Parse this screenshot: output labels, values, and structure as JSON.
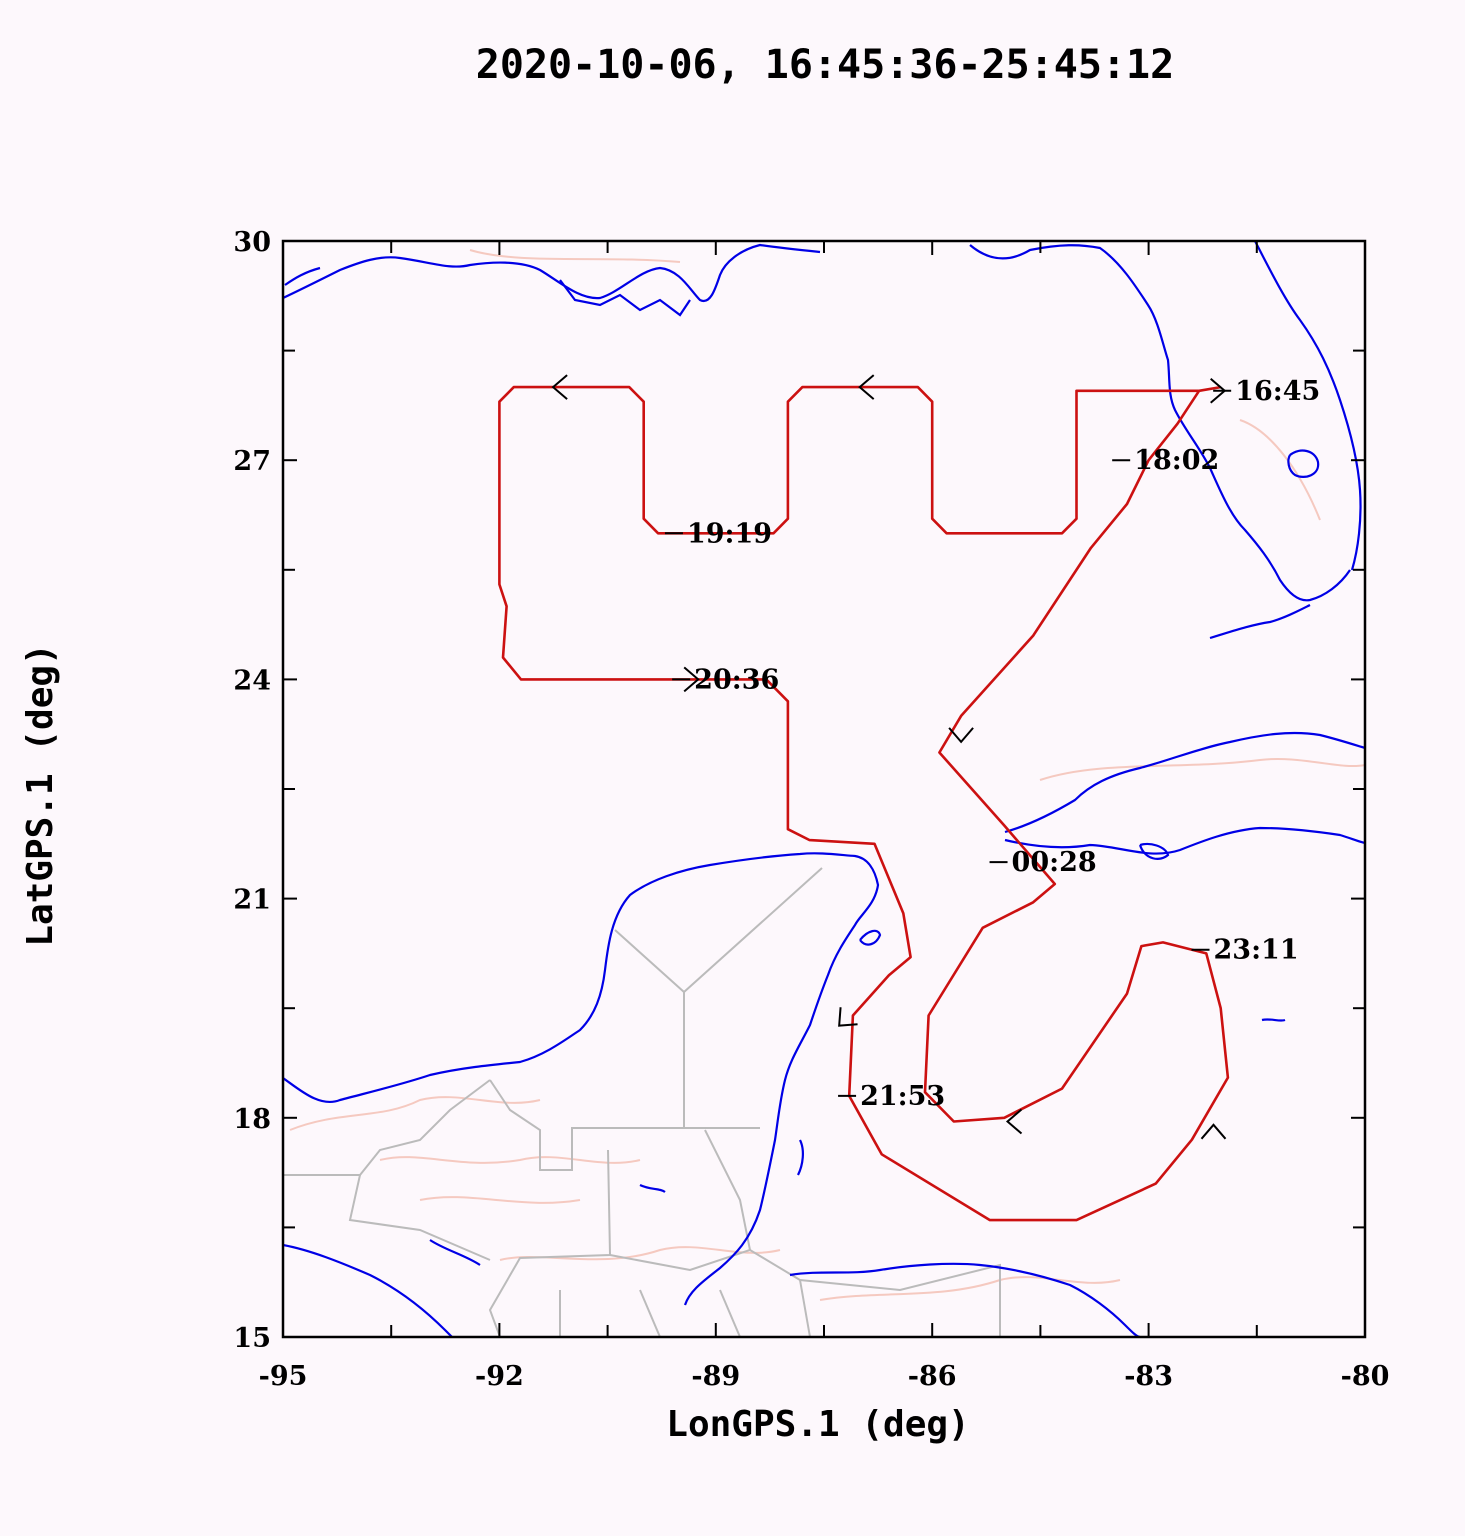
{
  "title": "2020-10-06, 16:45:36-25:45:12",
  "xlabel": "LonGPS.1 (deg)",
  "ylabel": "LatGPS.1 (deg)",
  "colors": {
    "track": "#cc1111",
    "coastline": "#0000e6",
    "borders": "#bbbbbb",
    "rivers": "#f5c9c0",
    "background": "#fdf8fc"
  },
  "chart_data": {
    "type": "map-track",
    "xlim": [
      -95,
      -80
    ],
    "ylim": [
      15,
      30
    ],
    "x_ticks": [
      -95,
      -92,
      -89,
      -86,
      -83,
      -80
    ],
    "y_ticks": [
      15,
      18,
      21,
      24,
      27,
      30
    ],
    "x_tick_labels": [
      "-95",
      "-92",
      "-89",
      "-86",
      "-83",
      "-80"
    ],
    "y_tick_labels": [
      "15",
      "18",
      "21",
      "24",
      "27",
      "30"
    ],
    "flight_track": [
      [
        -82.3,
        27.95
      ],
      [
        -82.9,
        27.95
      ],
      [
        -84.0,
        27.95
      ],
      [
        -84.0,
        26.2
      ],
      [
        -84.2,
        26.0
      ],
      [
        -85.8,
        26.0
      ],
      [
        -86.0,
        26.2
      ],
      [
        -86.0,
        27.8
      ],
      [
        -86.2,
        28.0
      ],
      [
        -87.8,
        28.0
      ],
      [
        -88.0,
        27.8
      ],
      [
        -88.0,
        26.2
      ],
      [
        -88.2,
        26.0
      ],
      [
        -89.8,
        26.0
      ],
      [
        -90.0,
        26.2
      ],
      [
        -90.0,
        27.8
      ],
      [
        -90.2,
        28.0
      ],
      [
        -91.8,
        28.0
      ],
      [
        -92.0,
        27.8
      ],
      [
        -92.0,
        25.3
      ],
      [
        -91.9,
        25.0
      ],
      [
        -91.95,
        24.3
      ],
      [
        -91.7,
        24.0
      ],
      [
        -88.3,
        24.0
      ],
      [
        -88.0,
        23.7
      ],
      [
        -88.0,
        21.95
      ],
      [
        -87.7,
        21.8
      ],
      [
        -86.8,
        21.75
      ],
      [
        -86.4,
        20.8
      ],
      [
        -86.3,
        20.2
      ],
      [
        -86.6,
        19.95
      ],
      [
        -87.1,
        19.4
      ],
      [
        -87.15,
        18.3
      ],
      [
        -86.7,
        17.5
      ],
      [
        -85.2,
        16.6
      ],
      [
        -84.0,
        16.6
      ],
      [
        -82.9,
        17.1
      ],
      [
        -82.4,
        17.7
      ],
      [
        -81.9,
        18.55
      ],
      [
        -82.0,
        19.5
      ],
      [
        -82.2,
        20.25
      ],
      [
        -82.8,
        20.4
      ],
      [
        -83.1,
        20.35
      ],
      [
        -83.3,
        19.7
      ],
      [
        -84.2,
        18.4
      ],
      [
        -85.0,
        18.0
      ],
      [
        -85.7,
        17.95
      ],
      [
        -86.1,
        18.35
      ],
      [
        -86.05,
        19.4
      ],
      [
        -85.3,
        20.6
      ],
      [
        -84.6,
        20.95
      ],
      [
        -84.3,
        21.2
      ],
      [
        -85.0,
        22.0
      ],
      [
        -85.9,
        23.0
      ],
      [
        -85.6,
        23.5
      ],
      [
        -84.6,
        24.6
      ],
      [
        -83.8,
        25.8
      ],
      [
        -83.3,
        26.4
      ],
      [
        -83.0,
        27.0
      ],
      [
        -82.6,
        27.5
      ],
      [
        -82.3,
        27.95
      ],
      [
        -82.0,
        28.0
      ]
    ],
    "direction_arrows": [
      {
        "lon": -91.2,
        "lat": 28.0,
        "dir": "west"
      },
      {
        "lon": -86.95,
        "lat": 28.0,
        "dir": "west"
      },
      {
        "lon": -82.0,
        "lat": 27.95,
        "dir": "east"
      },
      {
        "lon": -89.3,
        "lat": 24.0,
        "dir": "east"
      },
      {
        "lon": -85.6,
        "lat": 23.2,
        "dir": "south"
      },
      {
        "lon": -87.25,
        "lat": 19.3,
        "dir": "southwest"
      },
      {
        "lon": -84.9,
        "lat": 17.95,
        "dir": "west"
      },
      {
        "lon": -82.1,
        "lat": 17.85,
        "dir": "north"
      }
    ],
    "time_labels": [
      {
        "text": "16:45",
        "lon": -81.8,
        "lat": 27.95
      },
      {
        "text": "18:02",
        "lon": -83.2,
        "lat": 27.0
      },
      {
        "text": "19:19",
        "lon": -89.4,
        "lat": 26.0
      },
      {
        "text": "20:36",
        "lon": -89.3,
        "lat": 24.0
      },
      {
        "text": "21:53",
        "lon": -87.0,
        "lat": 18.3
      },
      {
        "text": "23:11",
        "lon": -82.1,
        "lat": 20.3
      },
      {
        "text": "00:28",
        "lon": -84.9,
        "lat": 21.5
      }
    ]
  }
}
